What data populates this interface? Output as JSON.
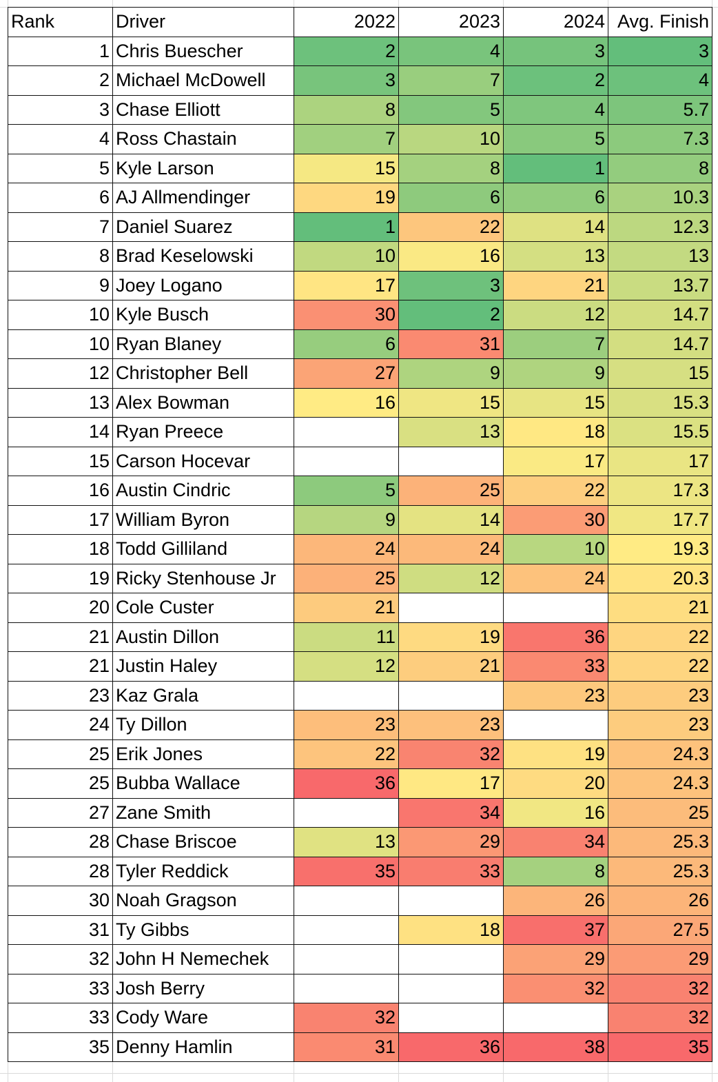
{
  "sheet": {
    "headers": {
      "rank": "Rank",
      "driver": "Driver",
      "y2022": "2022",
      "y2023": "2023",
      "y2024": "2024",
      "avg": "Avg. Finish"
    },
    "color_scale": {
      "min": "#63BE7B",
      "mid": "#FFEB84",
      "max": "#F8696B"
    },
    "rows": [
      {
        "rank": "1",
        "driver": "Chris Buescher",
        "y2022": "2",
        "y2023": "4",
        "y2024": "3",
        "avg": "3"
      },
      {
        "rank": "2",
        "driver": "Michael McDowell",
        "y2022": "3",
        "y2023": "7",
        "y2024": "2",
        "avg": "4"
      },
      {
        "rank": "3",
        "driver": "Chase Elliott",
        "y2022": "8",
        "y2023": "5",
        "y2024": "4",
        "avg": "5.7"
      },
      {
        "rank": "4",
        "driver": "Ross Chastain",
        "y2022": "7",
        "y2023": "10",
        "y2024": "5",
        "avg": "7.3"
      },
      {
        "rank": "5",
        "driver": "Kyle Larson",
        "y2022": "15",
        "y2023": "8",
        "y2024": "1",
        "avg": "8"
      },
      {
        "rank": "6",
        "driver": "AJ Allmendinger",
        "y2022": "19",
        "y2023": "6",
        "y2024": "6",
        "avg": "10.3"
      },
      {
        "rank": "7",
        "driver": "Daniel Suarez",
        "y2022": "1",
        "y2023": "22",
        "y2024": "14",
        "avg": "12.3"
      },
      {
        "rank": "8",
        "driver": "Brad Keselowski",
        "y2022": "10",
        "y2023": "16",
        "y2024": "13",
        "avg": "13"
      },
      {
        "rank": "9",
        "driver": "Joey Logano",
        "y2022": "17",
        "y2023": "3",
        "y2024": "21",
        "avg": "13.7"
      },
      {
        "rank": "10",
        "driver": "Kyle Busch",
        "y2022": "30",
        "y2023": "2",
        "y2024": "12",
        "avg": "14.7"
      },
      {
        "rank": "10",
        "driver": "Ryan Blaney",
        "y2022": "6",
        "y2023": "31",
        "y2024": "7",
        "avg": "14.7"
      },
      {
        "rank": "12",
        "driver": "Christopher Bell",
        "y2022": "27",
        "y2023": "9",
        "y2024": "9",
        "avg": "15"
      },
      {
        "rank": "13",
        "driver": "Alex Bowman",
        "y2022": "16",
        "y2023": "15",
        "y2024": "15",
        "avg": "15.3"
      },
      {
        "rank": "14",
        "driver": "Ryan Preece",
        "y2022": "",
        "y2023": "13",
        "y2024": "18",
        "avg": "15.5"
      },
      {
        "rank": "15",
        "driver": "Carson Hocevar",
        "y2022": "",
        "y2023": "",
        "y2024": "17",
        "avg": "17"
      },
      {
        "rank": "16",
        "driver": "Austin Cindric",
        "y2022": "5",
        "y2023": "25",
        "y2024": "22",
        "avg": "17.3"
      },
      {
        "rank": "17",
        "driver": "William Byron",
        "y2022": "9",
        "y2023": "14",
        "y2024": "30",
        "avg": "17.7"
      },
      {
        "rank": "18",
        "driver": "Todd Gilliland",
        "y2022": "24",
        "y2023": "24",
        "y2024": "10",
        "avg": "19.3"
      },
      {
        "rank": "19",
        "driver": "Ricky Stenhouse Jr",
        "y2022": "25",
        "y2023": "12",
        "y2024": "24",
        "avg": "20.3"
      },
      {
        "rank": "20",
        "driver": "Cole Custer",
        "y2022": "21",
        "y2023": "",
        "y2024": "",
        "avg": "21"
      },
      {
        "rank": "21",
        "driver": "Austin Dillon",
        "y2022": "11",
        "y2023": "19",
        "y2024": "36",
        "avg": "22"
      },
      {
        "rank": "21",
        "driver": "Justin Haley",
        "y2022": "12",
        "y2023": "21",
        "y2024": "33",
        "avg": "22"
      },
      {
        "rank": "23",
        "driver": "Kaz Grala",
        "y2022": "",
        "y2023": "",
        "y2024": "23",
        "avg": "23"
      },
      {
        "rank": "24",
        "driver": "Ty Dillon",
        "y2022": "23",
        "y2023": "23",
        "y2024": "",
        "avg": "23"
      },
      {
        "rank": "25",
        "driver": "Erik Jones",
        "y2022": "22",
        "y2023": "32",
        "y2024": "19",
        "avg": "24.3"
      },
      {
        "rank": "25",
        "driver": "Bubba Wallace",
        "y2022": "36",
        "y2023": "17",
        "y2024": "20",
        "avg": "24.3"
      },
      {
        "rank": "27",
        "driver": "Zane Smith",
        "y2022": "",
        "y2023": "34",
        "y2024": "16",
        "avg": "25"
      },
      {
        "rank": "28",
        "driver": "Chase Briscoe",
        "y2022": "13",
        "y2023": "29",
        "y2024": "34",
        "avg": "25.3"
      },
      {
        "rank": "28",
        "driver": "Tyler Reddick",
        "y2022": "35",
        "y2023": "33",
        "y2024": "8",
        "avg": "25.3"
      },
      {
        "rank": "30",
        "driver": "Noah Gragson",
        "y2022": "",
        "y2023": "",
        "y2024": "26",
        "avg": "26"
      },
      {
        "rank": "31",
        "driver": "Ty Gibbs",
        "y2022": "",
        "y2023": "18",
        "y2024": "37",
        "avg": "27.5"
      },
      {
        "rank": "32",
        "driver": "John H Nemechek",
        "y2022": "",
        "y2023": "",
        "y2024": "29",
        "avg": "29"
      },
      {
        "rank": "33",
        "driver": "Josh Berry",
        "y2022": "",
        "y2023": "",
        "y2024": "32",
        "avg": "32"
      },
      {
        "rank": "33",
        "driver": "Cody Ware",
        "y2022": "32",
        "y2023": "",
        "y2024": "",
        "avg": "32"
      },
      {
        "rank": "35",
        "driver": "Denny Hamlin",
        "y2022": "31",
        "y2023": "36",
        "y2024": "38",
        "avg": "35"
      }
    ]
  }
}
